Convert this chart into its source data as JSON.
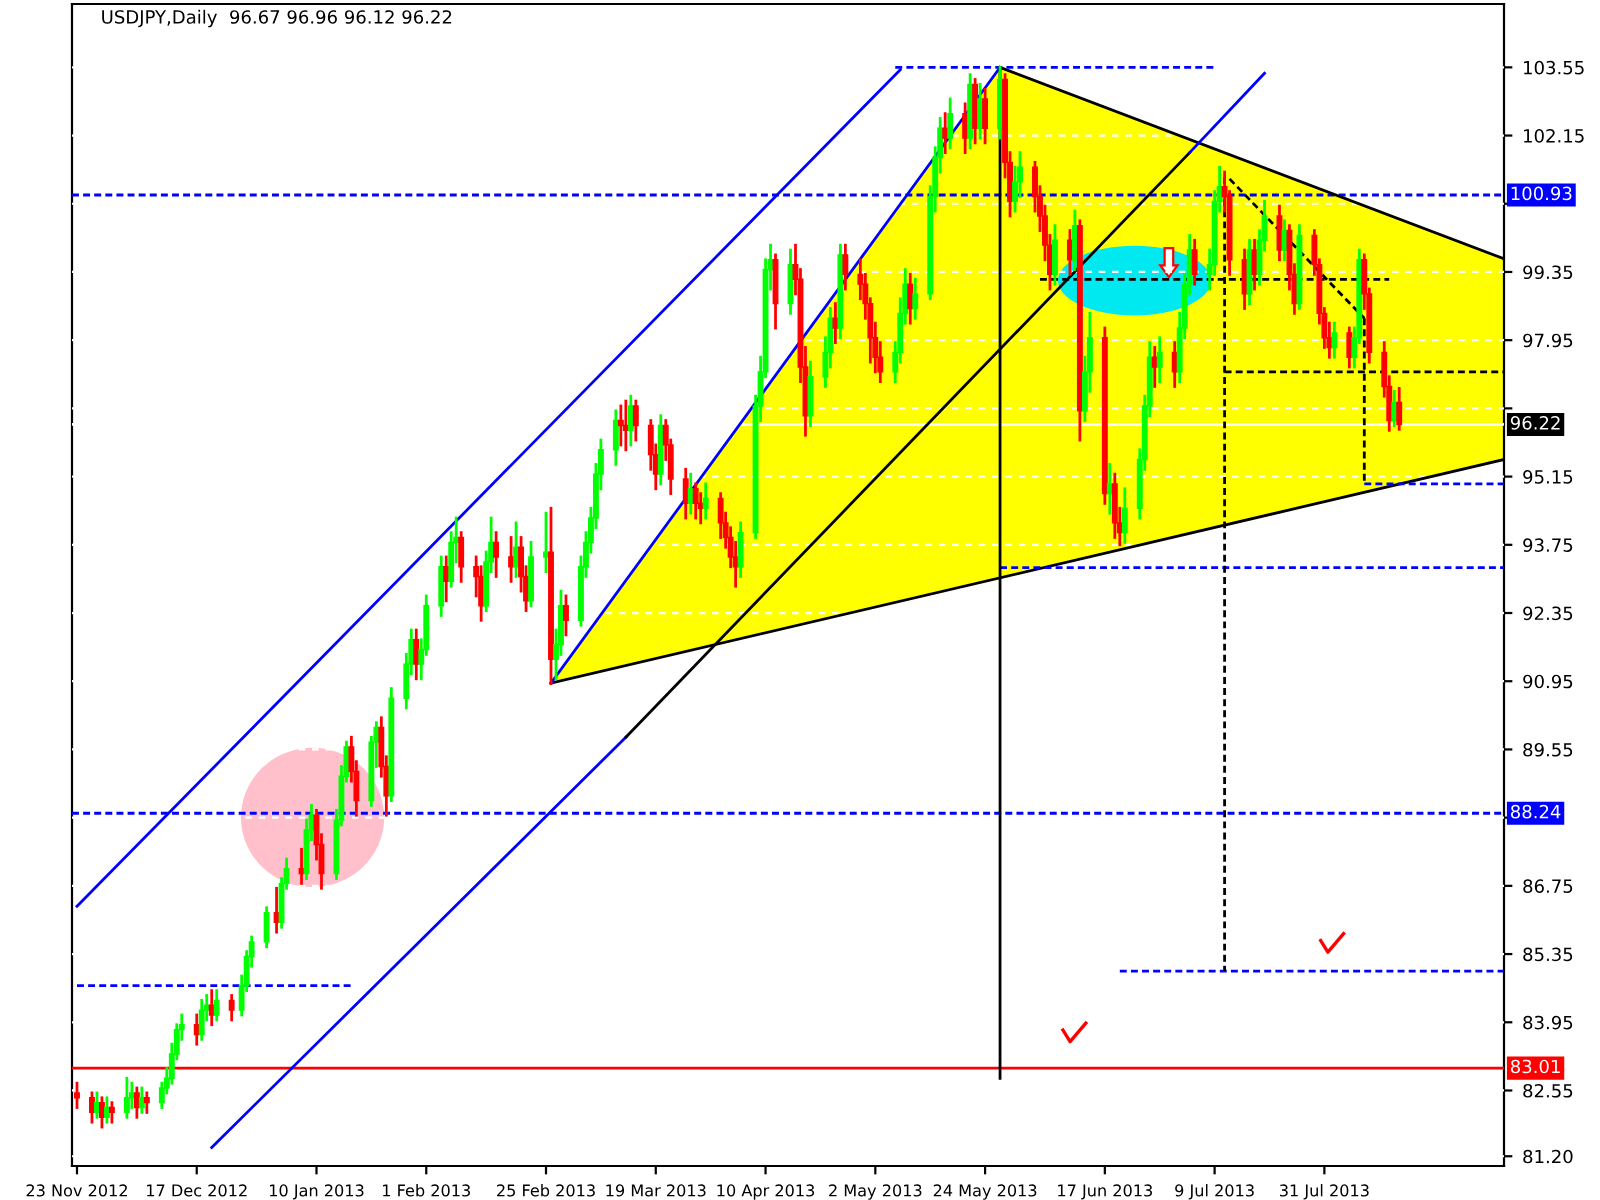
{
  "chart_data": {
    "type": "candlestick",
    "title": "USDJPY,Daily  96.67 96.96 96.12 96.22",
    "x": [
      "2012-11-23",
      "2012-11-26",
      "2012-11-27",
      "2012-11-28",
      "2012-11-29",
      "2012-11-30",
      "2012-12-03",
      "2012-12-04",
      "2012-12-05",
      "2012-12-06",
      "2012-12-07",
      "2012-12-10",
      "2012-12-11",
      "2012-12-12",
      "2012-12-13",
      "2012-12-14",
      "2012-12-17",
      "2012-12-18",
      "2012-12-19",
      "2012-12-20",
      "2012-12-21",
      "2012-12-24",
      "2012-12-26",
      "2012-12-27",
      "2012-12-28",
      "2012-12-31",
      "2013-01-02",
      "2013-01-03",
      "2013-01-04",
      "2013-01-07",
      "2013-01-08",
      "2013-01-09",
      "2013-01-10",
      "2013-01-11",
      "2013-01-14",
      "2013-01-15",
      "2013-01-16",
      "2013-01-17",
      "2013-01-18",
      "2013-01-21",
      "2013-01-22",
      "2013-01-23",
      "2013-01-24",
      "2013-01-25",
      "2013-01-28",
      "2013-01-29",
      "2013-01-30",
      "2013-01-31",
      "2013-02-01",
      "2013-02-04",
      "2013-02-05",
      "2013-02-06",
      "2013-02-07",
      "2013-02-08",
      "2013-02-11",
      "2013-02-12",
      "2013-02-13",
      "2013-02-14",
      "2013-02-15",
      "2013-02-18",
      "2013-02-19",
      "2013-02-20",
      "2013-02-21",
      "2013-02-22",
      "2013-02-25",
      "2013-02-26",
      "2013-02-27",
      "2013-02-28",
      "2013-03-01",
      "2013-03-04",
      "2013-03-05",
      "2013-03-06",
      "2013-03-07",
      "2013-03-08",
      "2013-03-11",
      "2013-03-12",
      "2013-03-13",
      "2013-03-14",
      "2013-03-15",
      "2013-03-18",
      "2013-03-19",
      "2013-03-20",
      "2013-03-21",
      "2013-03-22",
      "2013-03-25",
      "2013-03-26",
      "2013-03-27",
      "2013-03-28",
      "2013-03-29",
      "2013-04-01",
      "2013-04-02",
      "2013-04-03",
      "2013-04-04",
      "2013-04-05",
      "2013-04-08",
      "2013-04-09",
      "2013-04-10",
      "2013-04-11",
      "2013-04-12",
      "2013-04-15",
      "2013-04-16",
      "2013-04-17",
      "2013-04-18",
      "2013-04-19",
      "2013-04-22",
      "2013-04-23",
      "2013-04-24",
      "2013-04-25",
      "2013-04-26",
      "2013-04-29",
      "2013-04-30",
      "2013-05-01",
      "2013-05-02",
      "2013-05-03",
      "2013-05-06",
      "2013-05-07",
      "2013-05-08",
      "2013-05-09",
      "2013-05-10",
      "2013-05-13",
      "2013-05-14",
      "2013-05-15",
      "2013-05-16",
      "2013-05-17",
      "2013-05-20",
      "2013-05-21",
      "2013-05-22",
      "2013-05-23",
      "2013-05-24",
      "2013-05-27",
      "2013-05-28",
      "2013-05-29",
      "2013-05-30",
      "2013-05-31",
      "2013-06-03",
      "2013-06-04",
      "2013-06-05",
      "2013-06-06",
      "2013-06-07",
      "2013-06-10",
      "2013-06-11",
      "2013-06-12",
      "2013-06-13",
      "2013-06-14",
      "2013-06-17",
      "2013-06-18",
      "2013-06-19",
      "2013-06-20",
      "2013-06-21",
      "2013-06-24",
      "2013-06-25",
      "2013-06-26",
      "2013-06-27",
      "2013-06-28",
      "2013-07-01",
      "2013-07-02",
      "2013-07-03",
      "2013-07-04",
      "2013-07-05",
      "2013-07-08",
      "2013-07-09",
      "2013-07-10",
      "2013-07-11",
      "2013-07-12",
      "2013-07-15",
      "2013-07-16",
      "2013-07-17",
      "2013-07-18",
      "2013-07-19",
      "2013-07-22",
      "2013-07-23",
      "2013-07-24",
      "2013-07-25",
      "2013-07-26",
      "2013-07-29",
      "2013-07-30",
      "2013-07-31",
      "2013-08-01",
      "2013-08-02",
      "2013-08-05",
      "2013-08-06",
      "2013-08-07",
      "2013-08-08",
      "2013-08-09",
      "2013-08-12",
      "2013-08-13",
      "2013-08-14",
      "2013-08-15"
    ],
    "ohlc": [
      [
        82.5,
        82.7,
        82.2,
        82.4
      ],
      [
        82.4,
        82.5,
        81.9,
        82.1
      ],
      [
        82.1,
        82.5,
        82.0,
        82.3
      ],
      [
        82.3,
        82.4,
        81.8,
        82.0
      ],
      [
        82.0,
        82.4,
        81.9,
        82.2
      ],
      [
        82.2,
        82.3,
        81.9,
        82.1
      ],
      [
        82.1,
        82.8,
        82.0,
        82.4
      ],
      [
        82.4,
        82.7,
        82.2,
        82.5
      ],
      [
        82.5,
        82.6,
        82.0,
        82.2
      ],
      [
        82.2,
        82.6,
        82.1,
        82.4
      ],
      [
        82.4,
        82.5,
        82.1,
        82.3
      ],
      [
        82.3,
        82.7,
        82.2,
        82.6
      ],
      [
        82.6,
        83.0,
        82.5,
        82.8
      ],
      [
        82.8,
        83.5,
        82.7,
        83.3
      ],
      [
        83.3,
        83.9,
        83.2,
        83.8
      ],
      [
        83.8,
        84.1,
        83.6,
        83.9
      ],
      [
        83.9,
        84.1,
        83.5,
        83.7
      ],
      [
        83.7,
        84.4,
        83.6,
        84.2
      ],
      [
        84.2,
        84.5,
        84.0,
        84.3
      ],
      [
        84.3,
        84.6,
        83.9,
        84.1
      ],
      [
        84.1,
        84.6,
        84.0,
        84.4
      ],
      [
        84.4,
        84.5,
        84.0,
        84.2
      ],
      [
        84.2,
        84.9,
        84.1,
        84.7
      ],
      [
        84.7,
        85.4,
        84.6,
        85.3
      ],
      [
        85.3,
        85.7,
        85.1,
        85.6
      ],
      [
        85.6,
        86.3,
        85.5,
        86.2
      ],
      [
        86.2,
        86.7,
        85.8,
        86.0
      ],
      [
        86.0,
        86.9,
        85.9,
        86.8
      ],
      [
        86.8,
        87.3,
        86.7,
        87.1
      ],
      [
        87.1,
        87.5,
        86.8,
        87.0
      ],
      [
        87.0,
        88.1,
        86.9,
        87.9
      ],
      [
        87.9,
        88.4,
        87.7,
        88.2
      ],
      [
        88.2,
        88.3,
        87.3,
        87.6
      ],
      [
        87.6,
        87.8,
        86.7,
        87.0
      ],
      [
        87.0,
        88.3,
        86.9,
        88.1
      ],
      [
        88.1,
        89.2,
        88.0,
        89.0
      ],
      [
        89.0,
        89.7,
        88.9,
        89.6
      ],
      [
        89.6,
        89.8,
        88.9,
        89.1
      ],
      [
        89.1,
        89.3,
        88.2,
        88.5
      ],
      [
        88.5,
        89.8,
        88.4,
        89.7
      ],
      [
        89.7,
        90.1,
        89.2,
        90.0
      ],
      [
        90.0,
        90.2,
        89.0,
        89.2
      ],
      [
        89.2,
        89.4,
        88.2,
        88.6
      ],
      [
        88.6,
        90.8,
        88.5,
        90.6
      ],
      [
        90.6,
        91.5,
        90.4,
        91.3
      ],
      [
        91.3,
        92.0,
        91.1,
        91.8
      ],
      [
        91.8,
        92.0,
        91.0,
        91.3
      ],
      [
        91.3,
        91.8,
        91.0,
        91.6
      ],
      [
        91.6,
        92.7,
        91.5,
        92.5
      ],
      [
        92.5,
        93.5,
        92.3,
        93.3
      ],
      [
        93.3,
        93.5,
        92.6,
        93.0
      ],
      [
        93.0,
        94.0,
        92.9,
        93.8
      ],
      [
        93.8,
        94.3,
        93.4,
        93.9
      ],
      [
        93.9,
        94.0,
        93.0,
        93.3
      ],
      [
        93.3,
        93.5,
        92.7,
        93.1
      ],
      [
        93.1,
        93.3,
        92.2,
        92.5
      ],
      [
        92.5,
        93.6,
        92.4,
        93.4
      ],
      [
        93.4,
        94.3,
        93.2,
        93.8
      ],
      [
        93.8,
        94.0,
        93.1,
        93.5
      ],
      [
        93.5,
        93.9,
        93.0,
        93.3
      ],
      [
        93.3,
        94.2,
        93.1,
        93.7
      ],
      [
        93.7,
        93.9,
        92.8,
        93.1
      ],
      [
        93.1,
        93.3,
        92.4,
        92.6
      ],
      [
        92.6,
        93.8,
        92.5,
        93.5
      ],
      [
        93.5,
        94.4,
        93.2,
        93.6
      ],
      [
        93.6,
        94.5,
        90.9,
        91.4
      ],
      [
        91.4,
        92.0,
        91.0,
        91.7
      ],
      [
        91.7,
        92.8,
        91.5,
        92.5
      ],
      [
        92.5,
        92.7,
        91.9,
        92.2
      ],
      [
        92.2,
        93.5,
        92.1,
        93.3
      ],
      [
        93.3,
        94.0,
        93.1,
        93.8
      ],
      [
        93.8,
        94.5,
        93.6,
        94.3
      ],
      [
        94.3,
        95.4,
        94.1,
        95.2
      ],
      [
        95.2,
        95.9,
        94.9,
        95.7
      ],
      [
        95.7,
        96.5,
        95.4,
        96.3
      ],
      [
        96.3,
        96.6,
        95.8,
        96.2
      ],
      [
        96.2,
        96.7,
        95.7,
        96.1
      ],
      [
        96.1,
        96.8,
        95.8,
        96.6
      ],
      [
        96.6,
        96.7,
        95.9,
        96.2
      ],
      [
        96.2,
        96.3,
        95.3,
        95.6
      ],
      [
        95.6,
        95.8,
        94.9,
        95.2
      ],
      [
        95.2,
        96.4,
        95.0,
        96.2
      ],
      [
        96.2,
        96.3,
        95.5,
        95.8
      ],
      [
        95.8,
        95.9,
        94.8,
        95.1
      ],
      [
        95.1,
        95.3,
        94.3,
        94.6
      ],
      [
        94.6,
        95.2,
        94.4,
        94.9
      ],
      [
        94.9,
        95.0,
        94.3,
        94.6
      ],
      [
        94.6,
        94.8,
        94.2,
        94.5
      ],
      [
        94.5,
        95.0,
        94.3,
        94.7
      ],
      [
        94.7,
        94.8,
        93.9,
        94.2
      ],
      [
        94.2,
        94.4,
        93.7,
        93.9
      ],
      [
        93.9,
        94.1,
        93.3,
        93.5
      ],
      [
        93.5,
        93.8,
        92.9,
        93.3
      ],
      [
        93.3,
        94.2,
        93.1,
        94.0
      ],
      [
        94.0,
        96.8,
        93.9,
        96.6
      ],
      [
        96.6,
        97.6,
        96.3,
        97.3
      ],
      [
        97.3,
        99.6,
        97.2,
        99.4
      ],
      [
        99.4,
        99.9,
        99.0,
        99.6
      ],
      [
        99.6,
        99.7,
        98.2,
        98.7
      ],
      [
        98.7,
        99.8,
        98.5,
        99.5
      ],
      [
        99.5,
        99.9,
        98.9,
        99.2
      ],
      [
        99.2,
        99.4,
        97.1,
        97.4
      ],
      [
        97.4,
        97.8,
        96.0,
        96.4
      ],
      [
        96.4,
        97.5,
        96.2,
        97.2
      ],
      [
        97.2,
        98.0,
        97.0,
        97.7
      ],
      [
        97.7,
        98.6,
        97.4,
        98.4
      ],
      [
        98.4,
        98.7,
        97.9,
        98.2
      ],
      [
        98.2,
        99.9,
        98.0,
        99.7
      ],
      [
        99.7,
        99.9,
        99.0,
        99.3
      ],
      [
        99.3,
        99.6,
        98.8,
        99.1
      ],
      [
        99.1,
        99.3,
        98.4,
        98.7
      ],
      [
        98.7,
        98.8,
        97.5,
        98.0
      ],
      [
        98.0,
        98.3,
        97.3,
        97.6
      ],
      [
        97.6,
        97.9,
        97.1,
        97.3
      ],
      [
        97.3,
        97.9,
        97.1,
        97.7
      ],
      [
        97.7,
        98.8,
        97.5,
        98.5
      ],
      [
        98.5,
        99.4,
        98.3,
        99.1
      ],
      [
        99.1,
        99.3,
        98.3,
        98.6
      ],
      [
        98.6,
        99.2,
        98.4,
        98.9
      ],
      [
        98.9,
        101.1,
        98.8,
        100.9
      ],
      [
        100.9,
        101.9,
        100.6,
        101.7
      ],
      [
        101.7,
        102.5,
        101.4,
        102.3
      ],
      [
        102.3,
        102.6,
        101.8,
        102.1
      ],
      [
        102.1,
        102.9,
        101.9,
        102.6
      ],
      [
        102.6,
        102.8,
        101.8,
        102.1
      ],
      [
        102.1,
        103.4,
        101.9,
        103.2
      ],
      [
        103.2,
        103.3,
        102.0,
        102.3
      ],
      [
        102.3,
        103.2,
        102.1,
        102.9
      ],
      [
        102.9,
        103.1,
        102.0,
        102.3
      ],
      [
        102.3,
        103.55,
        102.1,
        103.3
      ],
      [
        103.3,
        103.4,
        101.3,
        101.6
      ],
      [
        101.6,
        101.8,
        100.5,
        100.8
      ],
      [
        100.8,
        101.5,
        100.6,
        101.2
      ],
      [
        101.2,
        101.8,
        100.9,
        101.5
      ],
      [
        101.5,
        101.6,
        100.6,
        100.9
      ],
      [
        100.9,
        101.1,
        100.2,
        100.5
      ],
      [
        100.5,
        100.7,
        99.6,
        99.9
      ],
      [
        99.9,
        100.1,
        99.0,
        99.3
      ],
      [
        99.3,
        100.3,
        99.1,
        100.0
      ],
      [
        100.0,
        100.2,
        99.3,
        99.6
      ],
      [
        99.6,
        100.6,
        99.4,
        100.3
      ],
      [
        100.3,
        100.4,
        95.9,
        96.5
      ],
      [
        96.5,
        97.6,
        96.3,
        97.3
      ],
      [
        97.3,
        98.5,
        96.9,
        98.0
      ],
      [
        98.0,
        98.2,
        94.6,
        94.8
      ],
      [
        94.8,
        95.4,
        94.4,
        95.0
      ],
      [
        95.0,
        95.2,
        93.9,
        94.2
      ],
      [
        94.2,
        94.5,
        93.75,
        94.0
      ],
      [
        94.0,
        94.9,
        93.8,
        94.5
      ],
      [
        94.5,
        95.7,
        94.3,
        95.5
      ],
      [
        95.5,
        96.8,
        95.3,
        96.6
      ],
      [
        96.6,
        97.9,
        96.4,
        97.6
      ],
      [
        97.6,
        97.8,
        97.0,
        97.4
      ],
      [
        97.4,
        98.0,
        97.1,
        97.7
      ],
      [
        97.7,
        97.9,
        97.0,
        97.3
      ],
      [
        97.3,
        98.5,
        97.1,
        98.2
      ],
      [
        98.2,
        99.3,
        98.0,
        99.1
      ],
      [
        99.1,
        100.1,
        98.9,
        99.8
      ],
      [
        99.8,
        100.0,
        99.1,
        99.3
      ],
      [
        99.3,
        99.8,
        99.0,
        99.5
      ],
      [
        99.5,
        101.0,
        99.3,
        100.8
      ],
      [
        100.8,
        101.5,
        100.6,
        101.1
      ],
      [
        101.1,
        101.4,
        100.6,
        100.9
      ],
      [
        100.9,
        101.0,
        99.3,
        99.6
      ],
      [
        99.6,
        99.8,
        98.6,
        98.9
      ],
      [
        98.9,
        100.0,
        98.7,
        99.8
      ],
      [
        99.8,
        100.0,
        99.0,
        99.3
      ],
      [
        99.3,
        100.2,
        99.1,
        100.0
      ],
      [
        100.0,
        100.8,
        99.8,
        100.5
      ],
      [
        100.5,
        100.7,
        99.6,
        99.8
      ],
      [
        99.8,
        100.4,
        99.6,
        100.2
      ],
      [
        100.2,
        100.3,
        99.0,
        99.3
      ],
      [
        99.3,
        99.5,
        98.5,
        98.7
      ],
      [
        98.7,
        100.3,
        98.6,
        100.1
      ],
      [
        100.1,
        100.2,
        99.3,
        99.5
      ],
      [
        99.5,
        99.6,
        98.3,
        98.5
      ],
      [
        98.5,
        98.6,
        97.8,
        98.0
      ],
      [
        98.0,
        98.3,
        97.6,
        97.8
      ],
      [
        97.8,
        98.3,
        97.6,
        98.1
      ],
      [
        98.1,
        98.2,
        97.4,
        97.6
      ],
      [
        97.6,
        98.2,
        97.4,
        98.0
      ],
      [
        98.0,
        99.8,
        97.9,
        99.6
      ],
      [
        99.6,
        99.7,
        98.6,
        98.9
      ],
      [
        98.9,
        99.0,
        97.5,
        97.7
      ],
      [
        97.7,
        97.9,
        96.8,
        97.0
      ],
      [
        97.0,
        97.2,
        96.1,
        96.3
      ],
      [
        96.3,
        96.9,
        96.2,
        96.67
      ],
      [
        96.67,
        96.96,
        96.12,
        96.22
      ]
    ],
    "colors": [
      "#ff0000",
      "#ff0000",
      "#00ff00",
      "#ff0000",
      "#00ff00",
      "#ff0000",
      "#00ff00",
      "#00ff00",
      "#ff0000",
      "#00ff00",
      "#ff0000",
      "#00ff00",
      "#00ff00",
      "#00ff00",
      "#00ff00",
      "#00ff00",
      "#ff0000",
      "#00ff00",
      "#00ff00",
      "#ff0000",
      "#00ff00",
      "#ff0000",
      "#00ff00",
      "#00ff00",
      "#00ff00",
      "#00ff00",
      "#ff0000",
      "#00ff00",
      "#00ff00",
      "#ff0000",
      "#00ff00",
      "#00ff00",
      "#ff0000",
      "#ff0000",
      "#00ff00",
      "#00ff00",
      "#00ff00",
      "#ff0000",
      "#ff0000",
      "#00ff00",
      "#00ff00",
      "#ff0000",
      "#ff0000",
      "#00ff00",
      "#00ff00",
      "#00ff00",
      "#ff0000",
      "#00ff00",
      "#00ff00",
      "#00ff00",
      "#ff0000",
      "#00ff00",
      "#00ff00",
      "#ff0000",
      "#ff0000",
      "#ff0000",
      "#00ff00",
      "#00ff00",
      "#ff0000",
      "#ff0000",
      "#00ff00",
      "#ff0000",
      "#ff0000",
      "#00ff00",
      "#00ff00",
      "#ff0000",
      "#00ff00",
      "#00ff00",
      "#ff0000",
      "#00ff00",
      "#00ff00",
      "#00ff00",
      "#00ff00",
      "#00ff00",
      "#00ff00",
      "#ff0000",
      "#ff0000",
      "#00ff00",
      "#ff0000",
      "#ff0000",
      "#ff0000",
      "#00ff00",
      "#ff0000",
      "#ff0000",
      "#ff0000",
      "#00ff00",
      "#ff0000",
      "#ff0000",
      "#00ff00",
      "#ff0000",
      "#ff0000",
      "#ff0000",
      "#ff0000",
      "#00ff00",
      "#00ff00",
      "#00ff00",
      "#00ff00",
      "#00ff00",
      "#ff0000",
      "#00ff00",
      "#ff0000",
      "#ff0000",
      "#ff0000",
      "#00ff00",
      "#00ff00",
      "#00ff00",
      "#ff0000",
      "#00ff00",
      "#ff0000",
      "#ff0000",
      "#ff0000",
      "#ff0000",
      "#ff0000",
      "#ff0000",
      "#00ff00",
      "#00ff00",
      "#00ff00",
      "#ff0000",
      "#00ff00",
      "#00ff00",
      "#00ff00",
      "#00ff00",
      "#ff0000",
      "#00ff00",
      "#ff0000",
      "#00ff00",
      "#ff0000",
      "#00ff00",
      "#ff0000",
      "#00ff00",
      "#ff0000",
      "#ff0000",
      "#00ff00",
      "#00ff00",
      "#ff0000",
      "#ff0000",
      "#ff0000",
      "#ff0000",
      "#00ff00",
      "#ff0000",
      "#00ff00",
      "#ff0000",
      "#00ff00",
      "#00ff00",
      "#ff0000",
      "#00ff00",
      "#ff0000",
      "#ff0000",
      "#00ff00",
      "#00ff00",
      "#00ff00",
      "#00ff00",
      "#ff0000",
      "#00ff00",
      "#ff0000",
      "#00ff00",
      "#00ff00",
      "#00ff00",
      "#ff0000",
      "#00ff00",
      "#00ff00",
      "#00ff00",
      "#ff0000",
      "#ff0000",
      "#ff0000",
      "#00ff00",
      "#ff0000",
      "#00ff00",
      "#00ff00",
      "#ff0000",
      "#00ff00",
      "#ff0000",
      "#ff0000",
      "#00ff00",
      "#ff0000",
      "#ff0000",
      "#ff0000",
      "#ff0000",
      "#00ff00",
      "#ff0000",
      "#00ff00",
      "#00ff00",
      "#ff0000",
      "#ff0000",
      "#ff0000",
      "#ff0000",
      "#00ff00",
      "#ff0000"
    ],
    "series": [
      {
        "type": "line",
        "x": [
          "2013-05-27",
          "2013-09-05"
        ],
        "values": [
          103.55,
          99.62
        ],
        "color": "#000000",
        "line_style": "solid"
      },
      {
        "type": "line",
        "x": [
          "2013-02-26",
          "2013-09-05"
        ],
        "values": [
          90.91,
          95.5
        ],
        "color": "#000000",
        "line_style": "solid"
      },
      {
        "type": "line",
        "x": [
          "2013-02-26",
          "2013-05-27"
        ],
        "values": [
          90.91,
          103.55
        ],
        "color": "#0000ff",
        "line_style": "solid"
      },
      {
        "type": "line",
        "x": [
          "2012-11-23",
          "2013-05-07"
        ],
        "values": [
          86.33,
          103.5
        ],
        "color": "#0000ff",
        "line_style": "solid"
      },
      {
        "type": "line",
        "x": [
          "2012-12-20",
          "2013-03-13"
        ],
        "values": [
          81.38,
          89.8
        ],
        "color": "#0000ff",
        "line_style": "solid"
      },
      {
        "type": "line",
        "x": [
          "2013-03-13",
          "2013-07-04"
        ],
        "values": [
          89.8,
          101.8
        ],
        "color": "#000000",
        "line_style": "solid"
      },
      {
        "type": "line",
        "x": [
          "2013-07-04",
          "2013-07-19"
        ],
        "values": [
          101.8,
          103.43
        ],
        "color": "#0000ff",
        "line_style": "solid"
      },
      {
        "type": "line",
        "x": [
          "2013-05-06",
          "2013-07-09"
        ],
        "values": [
          103.55,
          103.55
        ],
        "color": "#0000ff",
        "line_style": "dashed"
      },
      {
        "type": "line",
        "x": [
          "2012-11-23",
          "2013-01-17"
        ],
        "values": [
          84.7,
          84.7
        ],
        "color": "#0000ff",
        "line_style": "dashed"
      },
      {
        "type": "line",
        "x": [
          "2013-06-20",
          "2013-09-05"
        ],
        "values": [
          85.0,
          85.0
        ],
        "color": "#0000ff",
        "line_style": "dashed"
      },
      {
        "type": "line",
        "x": [
          "2013-05-27",
          "2013-09-05"
        ],
        "values": [
          93.28,
          93.28
        ],
        "color": "#0000ff",
        "line_style": "dashed"
      },
      {
        "type": "line",
        "x": [
          "2013-08-08",
          "2013-09-05"
        ],
        "values": [
          95.0,
          95.0
        ],
        "color": "#0000ff",
        "line_style": "dashed"
      },
      {
        "type": "line",
        "x": [
          "2013-06-04",
          "2013-08-13"
        ],
        "values": [
          99.2,
          99.2
        ],
        "color": "#000000",
        "line_style": "dashed"
      },
      {
        "type": "line",
        "x": [
          "2013-07-11",
          "2013-09-05"
        ],
        "values": [
          97.3,
          97.3
        ],
        "color": "#000000",
        "line_style": "dashed"
      },
      {
        "type": "line",
        "x": [
          "2013-05-27",
          "2013-05-27"
        ],
        "values": [
          103.55,
          82.8
        ],
        "color": "#000000",
        "line_style": "solid"
      },
      {
        "type": "line",
        "x": [
          "2013-07-11",
          "2013-07-11"
        ],
        "values": [
          101.3,
          85.0
        ],
        "color": "#000000",
        "line_style": "dashed"
      },
      {
        "type": "line",
        "x": [
          "2013-08-08",
          "2013-08-08"
        ],
        "values": [
          98.4,
          95.0
        ],
        "color": "#000000",
        "line_style": "dashed"
      },
      {
        "type": "line",
        "x": [
          "2013-07-12",
          "2013-08-08"
        ],
        "values": [
          101.26,
          98.4
        ],
        "color": "#000000",
        "line_style": "dashed"
      }
    ],
    "ref_lines": [
      {
        "axis": "y",
        "value": 100.93,
        "label": "100.93",
        "color": "#0000ff",
        "line_style": "dashed"
      },
      {
        "axis": "y",
        "value": 88.24,
        "label": "88.24",
        "color": "#0000ff",
        "line_style": "dashed"
      },
      {
        "axis": "y",
        "value": 83.01,
        "label": "83.01",
        "color": "#ff0000",
        "line_style": "solid"
      },
      {
        "axis": "y",
        "value": 96.22,
        "label": "96.22",
        "color": "#ffffff",
        "line_style": "solid"
      }
    ],
    "xlim": [
      "2012-11-22",
      "2013-09-05"
    ],
    "xticks": [
      {
        "value": "2012-11-23",
        "label": "23 Nov 2012"
      },
      {
        "value": "2012-12-17",
        "label": "17 Dec 2012"
      },
      {
        "value": "2013-01-10",
        "label": "10 Jan 2013"
      },
      {
        "value": "2013-02-01",
        "label": "1 Feb 2013"
      },
      {
        "value": "2013-02-25",
        "label": "25 Feb 2013"
      },
      {
        "value": "2013-03-19",
        "label": "19 Mar 2013"
      },
      {
        "value": "2013-04-10",
        "label": "10 Apr 2013"
      },
      {
        "value": "2013-05-02",
        "label": "2 May 2013"
      },
      {
        "value": "2013-05-24",
        "label": "24 May 2013"
      },
      {
        "value": "2013-06-17",
        "label": "17 Jun 2013"
      },
      {
        "value": "2013-07-09",
        "label": "9 Jul 2013"
      },
      {
        "value": "2013-07-31",
        "label": "31 Jul 2013"
      }
    ],
    "ylim": [
      81.0,
      104.85
    ],
    "yticks": [
      {
        "value": 81.2,
        "label": "81.20"
      },
      82.55,
      83.95,
      85.35,
      86.75,
      {
        "value": 88.15,
        "label": null
      },
      89.55,
      90.95,
      92.35,
      93.75,
      95.15,
      {
        "value": 96.55,
        "label": null
      },
      97.95,
      99.35,
      {
        "value": 100.75,
        "label": null
      },
      102.15,
      103.55
    ],
    "grid": "y"
  }
}
